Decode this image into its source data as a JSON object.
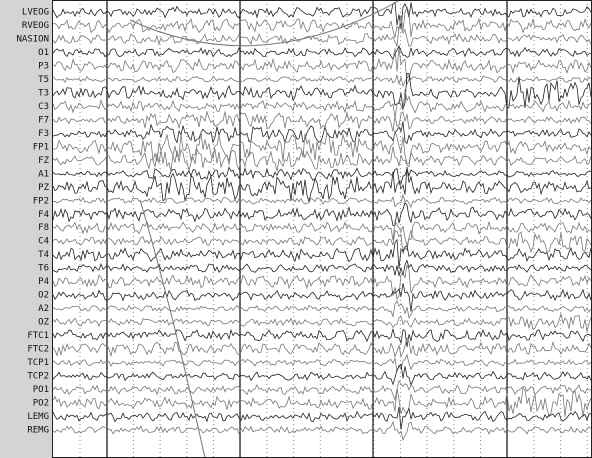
{
  "channels": [
    "LVEOG",
    "RVEOG",
    "NASION",
    "O1",
    "P3",
    "T5",
    "T3",
    "C3",
    "F7",
    "F3",
    "FP1",
    "FZ",
    "A1",
    "PZ",
    "FP2",
    "F4",
    "F8",
    "C4",
    "T4",
    "T6",
    "P4",
    "O2",
    "A2",
    "OZ",
    "FTC1",
    "FTC2",
    "TCP1",
    "TCP2",
    "PO1",
    "PO2",
    "LEMG",
    "REMG"
  ]
}
